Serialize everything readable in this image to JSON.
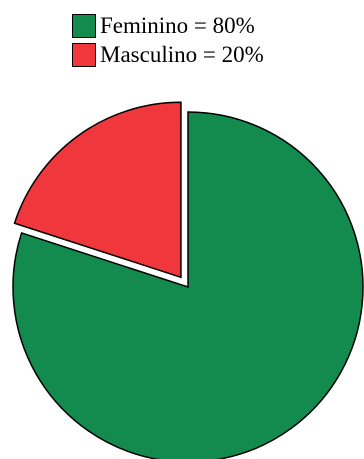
{
  "chart_data": {
    "type": "pie",
    "title": "",
    "legend_position": "top-center",
    "exploded_slice": "Masculino",
    "series": [
      {
        "name": "",
        "categories": [
          "Feminino",
          "Masculino"
        ],
        "values": [
          80,
          20
        ],
        "colors": [
          "#138b4e",
          "#f0373b"
        ]
      }
    ],
    "legend": [
      {
        "label": "Feminino = 80%",
        "color": "#138b4e"
      },
      {
        "label": "Masculino = 20%",
        "color": "#f0373b"
      }
    ]
  }
}
